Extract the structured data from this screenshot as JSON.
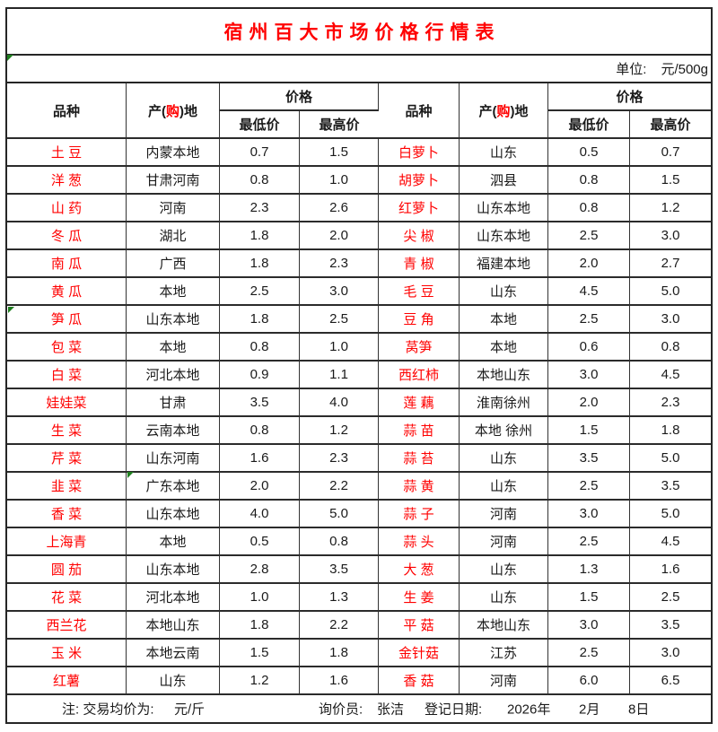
{
  "meta": {
    "title": "宿州百大市场价格行情表",
    "unit_label": "单位:",
    "unit_value": "元/500g"
  },
  "header": {
    "variety": "品种",
    "origin_prefix": "产(",
    "origin_highlight": "购",
    "origin_suffix": ")地",
    "price_group": "价格",
    "min": "最低价",
    "max": "最高价"
  },
  "rows": {
    "left": [
      {
        "name": "土 豆",
        "origin": "内蒙本地",
        "min": "0.7",
        "max": "1.5"
      },
      {
        "name": "洋 葱",
        "origin": "甘肃河南",
        "min": "0.8",
        "max": "1.0"
      },
      {
        "name": "山 药",
        "origin": "河南",
        "min": "2.3",
        "max": "2.6"
      },
      {
        "name": "冬 瓜",
        "origin": "湖北",
        "min": "1.8",
        "max": "2.0"
      },
      {
        "name": "南 瓜",
        "origin": "广西",
        "min": "1.8",
        "max": "2.3"
      },
      {
        "name": "黄 瓜",
        "origin": "本地",
        "min": "2.5",
        "max": "3.0"
      },
      {
        "name": "笋 瓜",
        "origin": "山东本地",
        "min": "1.8",
        "max": "2.5"
      },
      {
        "name": "包 菜",
        "origin": "本地",
        "min": "0.8",
        "max": "1.0"
      },
      {
        "name": "白 菜",
        "origin": "河北本地",
        "min": "0.9",
        "max": "1.1"
      },
      {
        "name": "娃娃菜",
        "origin": "甘肃",
        "min": "3.5",
        "max": "4.0"
      },
      {
        "name": "生 菜",
        "origin": "云南本地",
        "min": "0.8",
        "max": "1.2"
      },
      {
        "name": "芹 菜",
        "origin": "山东河南",
        "min": "1.6",
        "max": "2.3"
      },
      {
        "name": "韭 菜",
        "origin": "广东本地",
        "min": "2.0",
        "max": "2.2"
      },
      {
        "name": "香 菜",
        "origin": "山东本地",
        "min": "4.0",
        "max": "5.0"
      },
      {
        "name": "上海青",
        "origin": "本地",
        "min": "0.5",
        "max": "0.8"
      },
      {
        "name": "圆 茄",
        "origin": "山东本地",
        "min": "2.8",
        "max": "3.5"
      },
      {
        "name": "花 菜",
        "origin": "河北本地",
        "min": "1.0",
        "max": "1.3"
      },
      {
        "name": "西兰花",
        "origin": "本地山东",
        "min": "1.8",
        "max": "2.2"
      },
      {
        "name": "玉 米",
        "origin": "本地云南",
        "min": "1.5",
        "max": "1.8"
      },
      {
        "name": "红薯",
        "origin": "山东",
        "min": "1.2",
        "max": "1.6"
      }
    ],
    "right": [
      {
        "name": "白萝卜",
        "origin": "山东",
        "min": "0.5",
        "max": "0.7"
      },
      {
        "name": "胡萝卜",
        "origin": "泗县",
        "min": "0.8",
        "max": "1.5"
      },
      {
        "name": "红萝卜",
        "origin": "山东本地",
        "min": "0.8",
        "max": "1.2"
      },
      {
        "name": "尖 椒",
        "origin": "山东本地",
        "min": "2.5",
        "max": "3.0"
      },
      {
        "name": "青 椒",
        "origin": "福建本地",
        "min": "2.0",
        "max": "2.7"
      },
      {
        "name": "毛 豆",
        "origin": "山东",
        "min": "4.5",
        "max": "5.0"
      },
      {
        "name": "豆 角",
        "origin": "本地",
        "min": "2.5",
        "max": "3.0"
      },
      {
        "name": "莴笋",
        "origin": "本地",
        "min": "0.6",
        "max": "0.8"
      },
      {
        "name": "西红柿",
        "origin": "本地山东",
        "min": "3.0",
        "max": "4.5"
      },
      {
        "name": "莲 藕",
        "origin": "淮南徐州",
        "min": "2.0",
        "max": "2.3"
      },
      {
        "name": "蒜 苗",
        "origin": "本地 徐州",
        "min": "1.5",
        "max": "1.8"
      },
      {
        "name": "蒜 苔",
        "origin": "山东",
        "min": "3.5",
        "max": "5.0"
      },
      {
        "name": "蒜 黄",
        "origin": "山东",
        "min": "2.5",
        "max": "3.5"
      },
      {
        "name": "蒜 子",
        "origin": "河南",
        "min": "3.0",
        "max": "5.0"
      },
      {
        "name": "蒜 头",
        "origin": "河南",
        "min": "2.5",
        "max": "4.5"
      },
      {
        "name": "大 葱",
        "origin": "山东",
        "min": "1.3",
        "max": "1.6"
      },
      {
        "name": "生 姜",
        "origin": "山东",
        "min": "1.5",
        "max": "2.5"
      },
      {
        "name": "平 菇",
        "origin": "本地山东",
        "min": "3.0",
        "max": "3.5"
      },
      {
        "name": "金针菇",
        "origin": "江苏",
        "min": "2.5",
        "max": "3.0"
      },
      {
        "name": "香 菇",
        "origin": "河南",
        "min": "6.0",
        "max": "6.5"
      }
    ]
  },
  "footer": {
    "note_label": "注: 交易均价为:",
    "note_unit": "元/斤",
    "inquirer_label": "询价员:",
    "inquirer_name": "张洁",
    "date_label": "登记日期:",
    "date_year": "2026年",
    "date_month": "2月",
    "date_day": "8日"
  },
  "markers": [
    {
      "icon": "cell-error-indicator-icon",
      "location": "unit-row-left-edge"
    },
    {
      "icon": "cell-error-indicator-icon",
      "location": "left-row-7-variety-cell"
    },
    {
      "icon": "cell-error-indicator-icon",
      "location": "left-row-13-origin-cell"
    }
  ],
  "colors": {
    "accent_red": "#FF0000",
    "border_dark": "#262626",
    "error_triangle_green": "#1E7E1E"
  }
}
